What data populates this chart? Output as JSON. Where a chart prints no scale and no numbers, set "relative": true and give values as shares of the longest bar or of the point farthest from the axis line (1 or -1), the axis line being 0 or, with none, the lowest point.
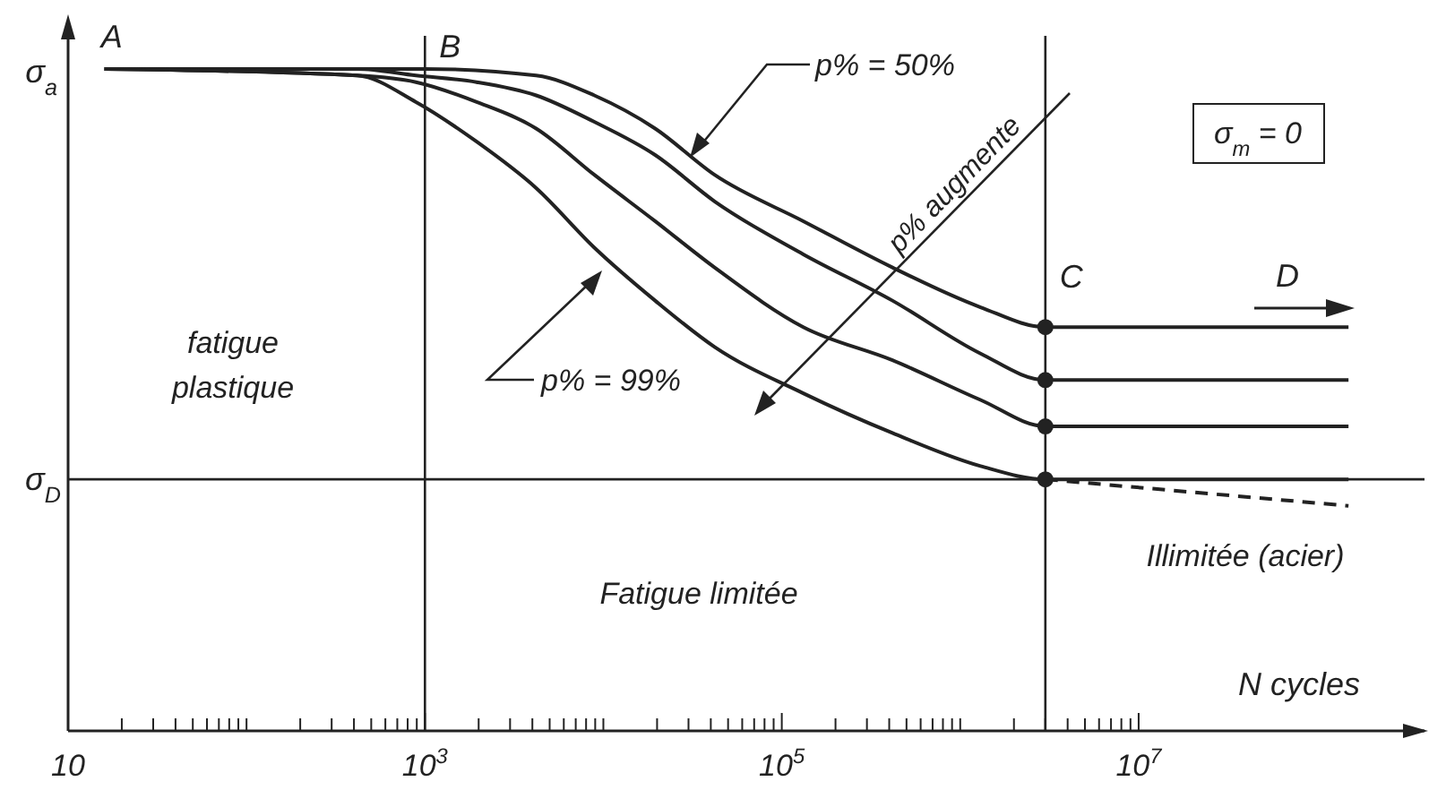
{
  "chart_data": {
    "type": "line",
    "relative": true,
    "xlabel": "N cycles",
    "ylabel": "σ$_{a}$",
    "log": "x",
    "xlim": [
      10,
      400000000
    ],
    "xticks": [
      10,
      {
        "value": 20,
        "label": null
      },
      {
        "value": 30,
        "label": null
      },
      {
        "value": 40,
        "label": null
      },
      {
        "value": 50,
        "label": null
      },
      {
        "value": 60,
        "label": null
      },
      {
        "value": 70,
        "label": null
      },
      {
        "value": 80,
        "label": null
      },
      {
        "value": 90,
        "label": null
      },
      {
        "value": 100,
        "label": null
      },
      {
        "value": 200,
        "label": null
      },
      {
        "value": 300,
        "label": null
      },
      {
        "value": 400,
        "label": null
      },
      {
        "value": 500,
        "label": null
      },
      {
        "value": 600,
        "label": null
      },
      {
        "value": 700,
        "label": null
      },
      {
        "value": 800,
        "label": null
      },
      {
        "value": 900,
        "label": null
      },
      {
        "value": 1000,
        "label": "10$^{3}$"
      },
      {
        "value": 2000,
        "label": null
      },
      {
        "value": 3000,
        "label": null
      },
      {
        "value": 4000,
        "label": null
      },
      {
        "value": 5000,
        "label": null
      },
      {
        "value": 6000,
        "label": null
      },
      {
        "value": 7000,
        "label": null
      },
      {
        "value": 8000,
        "label": null
      },
      {
        "value": 9000,
        "label": null
      },
      {
        "value": 10000,
        "label": null
      },
      {
        "value": 20000,
        "label": null
      },
      {
        "value": 30000,
        "label": null
      },
      {
        "value": 40000,
        "label": null
      },
      {
        "value": 50000,
        "label": null
      },
      {
        "value": 60000,
        "label": null
      },
      {
        "value": 70000,
        "label": null
      },
      {
        "value": 80000,
        "label": null
      },
      {
        "value": 90000,
        "label": null
      },
      {
        "value": 100000,
        "label": "10$^{5}$"
      },
      {
        "value": 200000,
        "label": null
      },
      {
        "value": 300000,
        "label": null
      },
      {
        "value": 400000,
        "label": null
      },
      {
        "value": 500000,
        "label": null
      },
      {
        "value": 600000,
        "label": null
      },
      {
        "value": 700000,
        "label": null
      },
      {
        "value": 800000,
        "label": null
      },
      {
        "value": 900000,
        "label": null
      },
      {
        "value": 1000000,
        "label": null
      },
      {
        "value": 2000000,
        "label": null
      },
      {
        "value": 3000000,
        "label": null
      },
      {
        "value": 4000000,
        "label": null
      },
      {
        "value": 5000000,
        "label": null
      },
      {
        "value": 6000000,
        "label": null
      },
      {
        "value": 7000000,
        "label": null
      },
      {
        "value": 8000000,
        "label": null
      },
      {
        "value": 9000000,
        "label": null
      },
      {
        "value": 10000000,
        "label": "10$^{7}$"
      }
    ],
    "marker": "none",
    "line_style": "solid",
    "series": [
      {
        "color": "#222222",
        "x": [
          16,
          1000,
          4200,
          8900,
          19500,
          42000,
          132000,
          417000,
          1300000,
          3000000,
          150000000
        ],
        "values": [
          1,
          1,
          0.99,
          0.96,
          0.91,
          0.84,
          0.77,
          0.7,
          0.64,
          0.61,
          0.61
        ]
      },
      {
        "color": "#222222",
        "x": [
          16,
          417,
          891,
          1950,
          4200,
          8900,
          19500,
          42000,
          132000,
          417000,
          1300000,
          3000000,
          150000000
        ],
        "values": [
          1,
          1,
          0.99,
          0.98,
          0.96,
          0.92,
          0.87,
          0.8,
          0.72,
          0.65,
          0.57,
          0.53,
          0.53
        ]
      },
      {
        "color": "#222222",
        "x": [
          16,
          417,
          891,
          1950,
          4200,
          8900,
          19500,
          42000,
          132000,
          417000,
          1300000,
          3000000,
          150000000
        ],
        "values": [
          1,
          0.99,
          0.98,
          0.95,
          0.91,
          0.84,
          0.77,
          0.7,
          0.61,
          0.56,
          0.5,
          0.46,
          0.46
        ]
      },
      {
        "color": "#222222",
        "x": [
          16,
          417,
          891,
          1950,
          4200,
          8900,
          19500,
          42000,
          132000,
          417000,
          1300000,
          3000000,
          150000000
        ],
        "values": [
          1,
          0.99,
          0.95,
          0.89,
          0.82,
          0.73,
          0.65,
          0.58,
          0.51,
          0.45,
          0.4,
          0.38,
          0.38
        ]
      },
      {
        "color": "#222222",
        "line_style": "dashed",
        "x": [
          3000000,
          150000000
        ],
        "values": [
          0.38,
          0.34
        ]
      },
      {
        "type": "scatter",
        "marker": "circle",
        "color": "#222222",
        "x": [
          3000000,
          3000000,
          3000000,
          3000000
        ],
        "values": [
          0.61,
          0.53,
          0.46,
          0.38
        ]
      }
    ],
    "ref_lines": [
      {
        "axis": "x",
        "value": 1000,
        "label": "B"
      },
      {
        "axis": "x",
        "value": 3000000,
        "label": "C"
      },
      {
        "axis": "y",
        "value": 0.38,
        "label": "σ$_{D}$"
      }
    ],
    "annotations": [
      {
        "text": "A",
        "x": 16,
        "y": 1
      },
      "D",
      "p% = 50%",
      "p% = 99%",
      "p% augmente",
      "fatigue plastique",
      "Fatigue limitée",
      "Illimitée (acier)",
      "σ$_{m}$ = 0"
    ]
  }
}
